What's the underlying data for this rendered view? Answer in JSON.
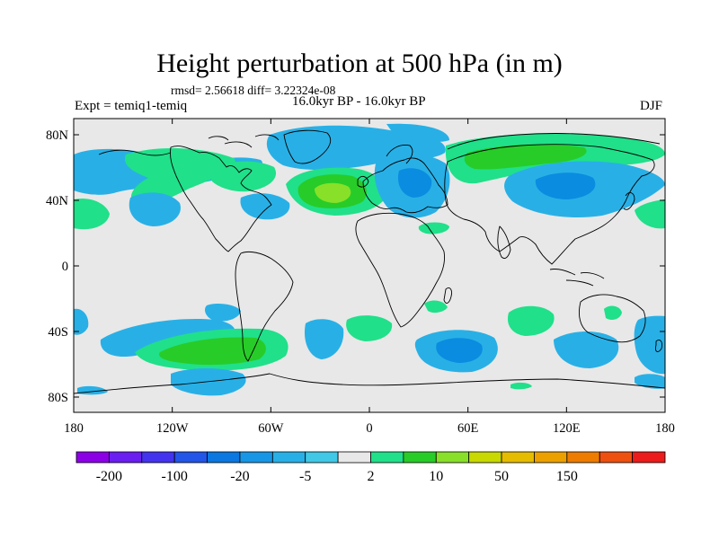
{
  "title": "Height perturbation at 500 hPa (in m)",
  "stats_text": "rmsd= 2.56618 diff= 3.22324e-08",
  "experiment_label": "Expt = temiq1-temiq",
  "period_label": "16.0kyr BP - 16.0kyr BP",
  "season_label": "DJF",
  "y_ticks": [
    "80N",
    "40N",
    "0",
    "40S",
    "80S"
  ],
  "x_ticks": [
    "180",
    "120W",
    "60W",
    "0",
    "60E",
    "120E",
    "180"
  ],
  "colorbar": {
    "colors": [
      "#8c00e6",
      "#6a1ef0",
      "#4433ee",
      "#2255e8",
      "#0a78e0",
      "#1896e6",
      "#28b0e6",
      "#40c8e6",
      "#e8e8e8",
      "#20e08a",
      "#28cc28",
      "#88e028",
      "#c8d800",
      "#e6bc00",
      "#eca000",
      "#ee7c00",
      "#ee5010",
      "#ec1c1c"
    ],
    "labels": [
      "-200",
      "-100",
      "-20",
      "-5",
      "2",
      "10",
      "50",
      "150"
    ]
  },
  "colors": {
    "ocean_bg": "#e8e8e8",
    "blue": "#28b0e6",
    "blue_dark": "#0a8ce0",
    "green": "#20e08a",
    "green_mid": "#28cc28",
    "yellow_green": "#88e028",
    "coast": "#000000"
  }
}
